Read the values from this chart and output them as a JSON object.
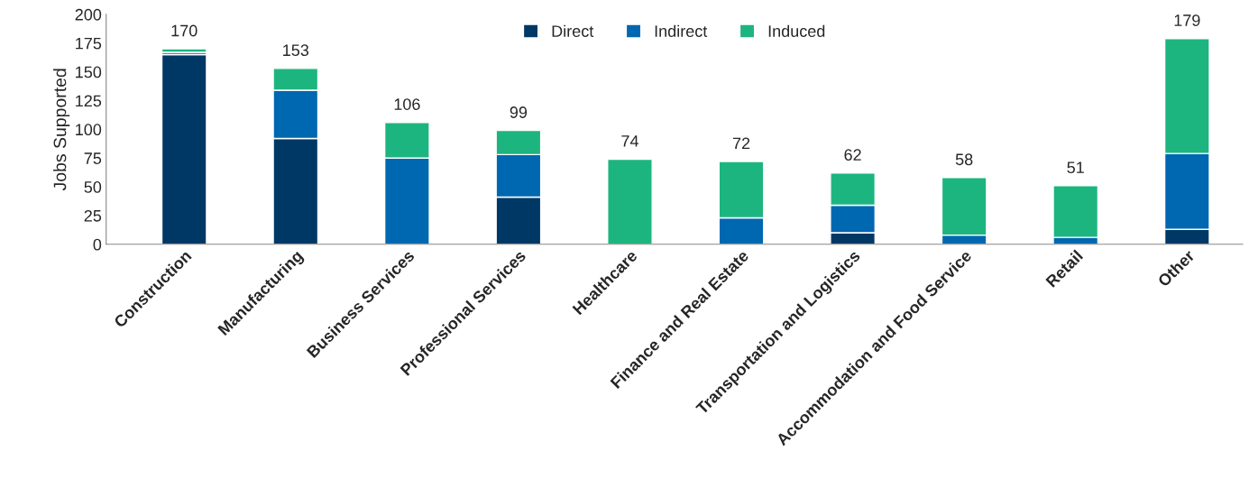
{
  "chart_data": {
    "type": "bar",
    "stacked": true,
    "ylabel": "Jobs Supported",
    "categories": [
      "Construction",
      "Manufacturing",
      "Business Services",
      "Professional Services",
      "Healthcare",
      "Finance and Real Estate",
      "Transportation and Logistics",
      "Accommodation and Food Service",
      "Retail",
      "Other"
    ],
    "series": [
      {
        "name": "Direct",
        "color": "#003865",
        "values": [
          165,
          92,
          0,
          41,
          0,
          0,
          10,
          0,
          0,
          13
        ]
      },
      {
        "name": "Indirect",
        "color": "#0067b1",
        "values": [
          2,
          42,
          75,
          37,
          0,
          23,
          24,
          8,
          6,
          66
        ]
      },
      {
        "name": "Induced",
        "color": "#1db57f",
        "values": [
          3,
          19,
          31,
          21,
          74,
          49,
          28,
          50,
          45,
          100
        ]
      }
    ],
    "totals": [
      "170",
      "153",
      "106",
      "99",
      "74",
      "72",
      "62",
      "58",
      "51",
      "179"
    ],
    "ylim": [
      0,
      200
    ],
    "yticks": [
      0,
      25,
      50,
      75,
      100,
      125,
      150,
      175,
      200
    ],
    "grid": false,
    "legend": "top"
  }
}
